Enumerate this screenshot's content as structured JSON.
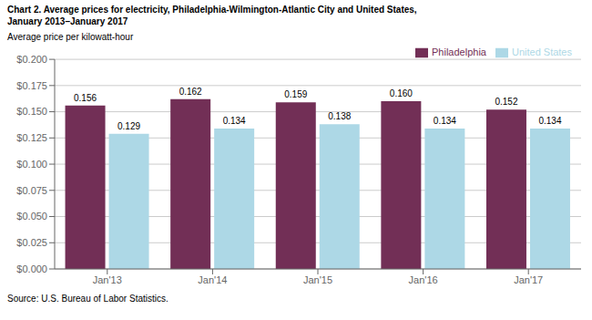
{
  "chart_data": {
    "type": "bar",
    "title": "Chart 2. Average prices for electricity, Philadelphia-Wilmington-Atlantic  City and United States,",
    "subtitle": "January 2013–January 2017",
    "y_label": "Average price per kilowatt-hour",
    "source": "Source: U.S. Bureau of Labor Statistics.",
    "categories": [
      "Jan'13",
      "Jan'14",
      "Jan'15",
      "Jan'16",
      "Jan'17"
    ],
    "series": [
      {
        "name": "Philadelphia",
        "color": "#722F56",
        "values": [
          0.156,
          0.162,
          0.159,
          0.16,
          0.152
        ],
        "value_labels": [
          "0.156",
          "0.162",
          "0.159",
          "0.160",
          "0.152"
        ]
      },
      {
        "name": "United States",
        "color": "#ADD8E6",
        "values": [
          0.129,
          0.134,
          0.138,
          0.134,
          0.134
        ],
        "value_labels": [
          "0.129",
          "0.134",
          "0.138",
          "0.134",
          "0.134"
        ]
      }
    ],
    "ylim": [
      0,
      0.2
    ],
    "yticks": [
      {
        "value": 0.0,
        "label": "$0.000"
      },
      {
        "value": 0.025,
        "label": "$0.025"
      },
      {
        "value": 0.05,
        "label": "$0.050"
      },
      {
        "value": 0.075,
        "label": "$0.075"
      },
      {
        "value": 0.1,
        "label": "$0.100"
      },
      {
        "value": 0.125,
        "label": "$0.125"
      },
      {
        "value": 0.15,
        "label": "$0.150"
      },
      {
        "value": 0.175,
        "label": "$0.175"
      },
      {
        "value": 0.2,
        "label": "$0.200"
      }
    ],
    "grid": true,
    "legend": "upper right",
    "data_labels": true
  }
}
